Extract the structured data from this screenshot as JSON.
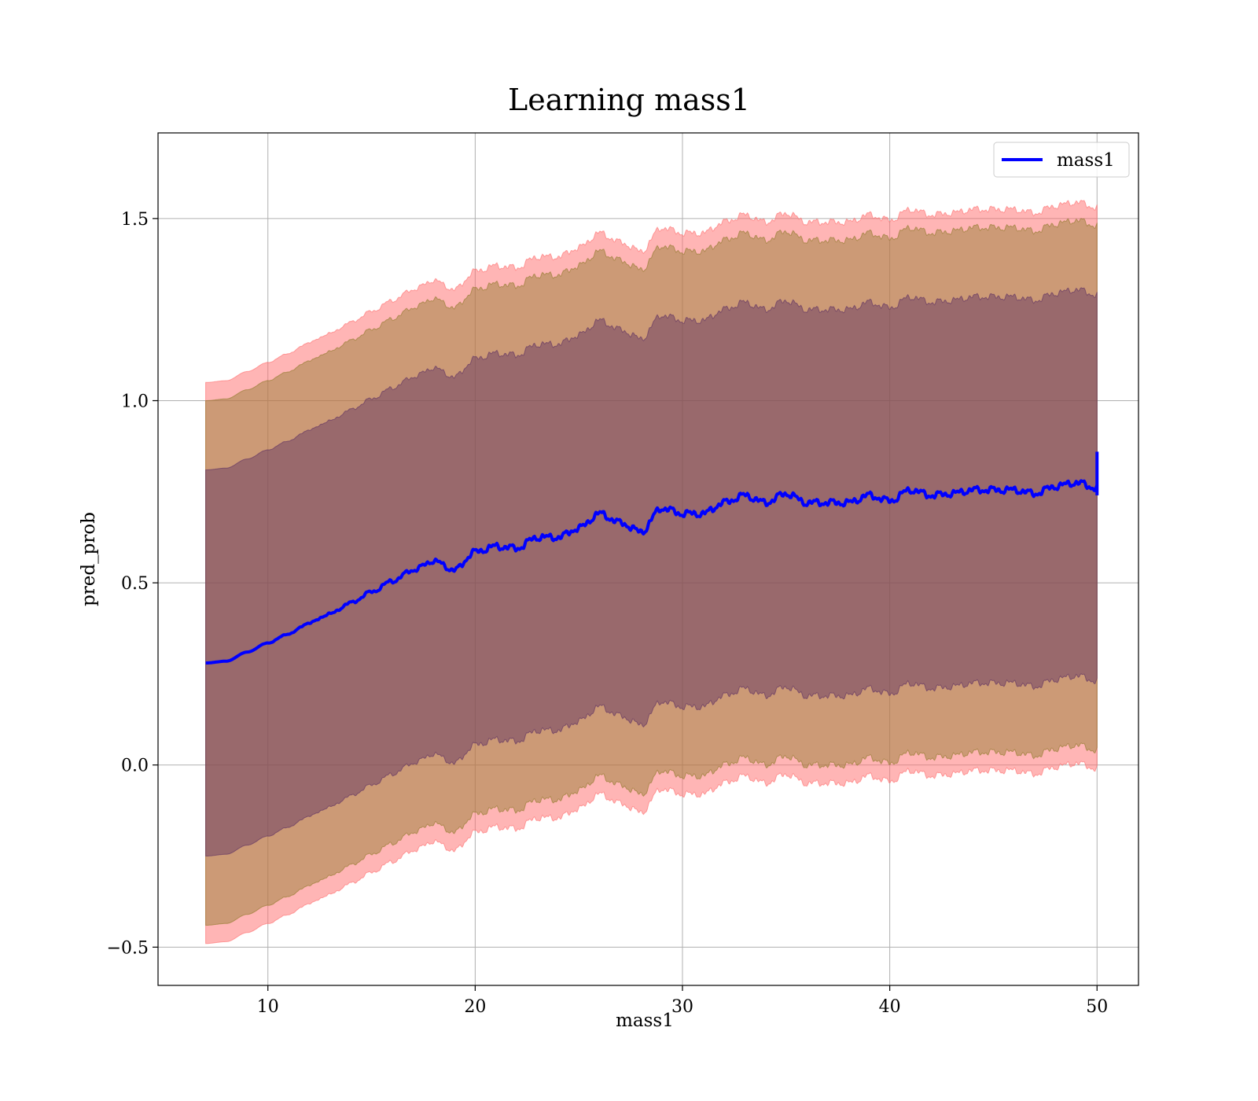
{
  "chart_data": {
    "type": "line",
    "title": "Learning mass1",
    "xlabel": "mass1",
    "ylabel": "pred_prob",
    "xlim": [
      4.7,
      52.0
    ],
    "ylim": [
      -0.605,
      1.735
    ],
    "x_ticks": [
      10,
      20,
      30,
      40,
      50
    ],
    "y_ticks": [
      -0.5,
      0.0,
      0.5,
      1.0,
      1.5
    ],
    "x_tick_labels": [
      "10",
      "20",
      "30",
      "40",
      "50"
    ],
    "y_tick_labels": [
      "−0.5",
      "0.0",
      "0.5",
      "1.0",
      "1.5"
    ],
    "grid": true,
    "legend": {
      "position": "top-right",
      "entries": [
        "mass1"
      ]
    },
    "series": [
      {
        "name": "mass1",
        "color": "#0000ff",
        "x": [
          7,
          8,
          9,
          10,
          11,
          12,
          13,
          14,
          15,
          16,
          17,
          18,
          19,
          20,
          21,
          22,
          23,
          24,
          25,
          26,
          27,
          28,
          29,
          30,
          31,
          32,
          33,
          34,
          35,
          36,
          37,
          38,
          39,
          40,
          41,
          42,
          43,
          44,
          45,
          46,
          47,
          48,
          49,
          50
        ],
        "y": [
          0.28,
          0.285,
          0.31,
          0.335,
          0.36,
          0.39,
          0.415,
          0.445,
          0.475,
          0.505,
          0.535,
          0.56,
          0.535,
          0.585,
          0.6,
          0.595,
          0.625,
          0.625,
          0.65,
          0.69,
          0.665,
          0.64,
          0.705,
          0.69,
          0.69,
          0.72,
          0.74,
          0.72,
          0.745,
          0.72,
          0.72,
          0.72,
          0.74,
          0.725,
          0.755,
          0.74,
          0.745,
          0.755,
          0.755,
          0.755,
          0.745,
          0.765,
          0.775,
          0.76
        ],
        "end_spike": [
          0.74,
          0.86
        ]
      }
    ],
    "bands": [
      {
        "name": "outer",
        "color": "#ff6b6b",
        "opacity": 0.5,
        "upper_offset": 0.77,
        "lower_offset": 0.77
      },
      {
        "name": "middle",
        "color": "#8f7a2a",
        "opacity": 0.45,
        "upper_offset": 0.72,
        "lower_offset": 0.72
      },
      {
        "name": "inner",
        "color": "#5c2e62",
        "opacity": 0.45,
        "upper_offset": 0.53,
        "lower_offset": 0.53
      }
    ]
  }
}
